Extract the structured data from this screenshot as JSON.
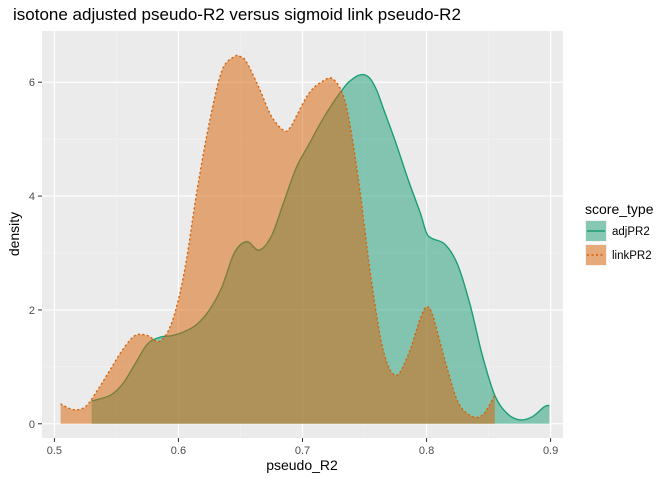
{
  "chart_data": {
    "type": "area",
    "title": "isotone adjusted pseudo-R2 versus sigmoid link pseudo-R2",
    "xlabel": "pseudo_R2",
    "ylabel": "density",
    "xlim": [
      0.49,
      0.91
    ],
    "ylim": [
      -0.25,
      6.9
    ],
    "x_ticks": [
      0.5,
      0.6,
      0.7,
      0.8,
      0.9
    ],
    "x_tick_labels": [
      "0.5",
      "0.6",
      "0.7",
      "0.8",
      "0.9"
    ],
    "y_ticks": [
      0,
      2,
      4,
      6
    ],
    "y_tick_labels": [
      "0",
      "2",
      "4",
      "6"
    ],
    "grid": true,
    "legend": {
      "title": "score_type",
      "position": "right",
      "entries": [
        "adjPR2",
        "linkPR2"
      ]
    },
    "series": [
      {
        "name": "adjPR2",
        "fill": "#1b9e77",
        "line": "#1b9e77",
        "linestyle": "solid",
        "x": [
          0.53,
          0.545,
          0.555,
          0.565,
          0.575,
          0.585,
          0.595,
          0.605,
          0.615,
          0.625,
          0.635,
          0.645,
          0.655,
          0.665,
          0.675,
          0.685,
          0.695,
          0.705,
          0.715,
          0.725,
          0.735,
          0.74,
          0.745,
          0.75,
          0.755,
          0.76,
          0.765,
          0.775,
          0.785,
          0.795,
          0.8,
          0.805,
          0.815,
          0.825,
          0.835,
          0.845,
          0.855,
          0.865,
          0.875,
          0.885,
          0.895,
          0.899
        ],
        "y": [
          0.4,
          0.5,
          0.7,
          1.05,
          1.4,
          1.52,
          1.55,
          1.62,
          1.75,
          2.0,
          2.4,
          3.0,
          3.2,
          3.05,
          3.3,
          3.9,
          4.5,
          4.9,
          5.3,
          5.65,
          5.95,
          6.05,
          6.12,
          6.13,
          6.05,
          5.85,
          5.55,
          4.95,
          4.3,
          3.7,
          3.35,
          3.25,
          3.15,
          2.8,
          2.1,
          1.2,
          0.5,
          0.18,
          0.07,
          0.12,
          0.3,
          0.32
        ]
      },
      {
        "name": "linkPR2",
        "fill": "#d95f02",
        "line": "#d95f02",
        "linestyle": "dotted",
        "x": [
          0.505,
          0.515,
          0.525,
          0.535,
          0.545,
          0.555,
          0.565,
          0.575,
          0.585,
          0.595,
          0.605,
          0.615,
          0.625,
          0.635,
          0.645,
          0.65,
          0.655,
          0.665,
          0.675,
          0.685,
          0.69,
          0.695,
          0.705,
          0.715,
          0.725,
          0.735,
          0.745,
          0.755,
          0.765,
          0.775,
          0.785,
          0.795,
          0.8,
          0.805,
          0.815,
          0.825,
          0.835,
          0.845,
          0.855
        ],
        "y": [
          0.35,
          0.25,
          0.3,
          0.6,
          0.95,
          1.3,
          1.55,
          1.55,
          1.45,
          1.8,
          2.7,
          4.1,
          5.3,
          6.2,
          6.45,
          6.45,
          6.35,
          5.9,
          5.4,
          5.15,
          5.2,
          5.4,
          5.8,
          6.0,
          6.05,
          5.6,
          4.3,
          2.6,
          1.3,
          0.85,
          1.2,
          1.85,
          2.05,
          1.9,
          1.1,
          0.4,
          0.15,
          0.15,
          0.5
        ]
      }
    ]
  }
}
